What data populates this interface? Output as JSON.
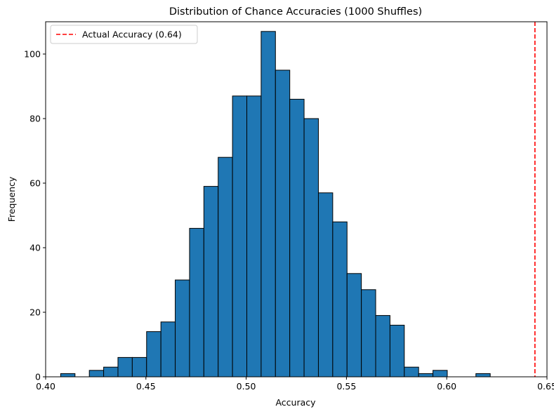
{
  "chart_data": {
    "type": "bar",
    "title": "Distribution of Chance Accuracies (1000 Shuffles)",
    "xlabel": "Accuracy",
    "ylabel": "Frequency",
    "xlim": [
      0.4,
      0.65
    ],
    "ylim": [
      0,
      110
    ],
    "xticks": [
      0.4,
      0.45,
      0.5,
      0.55,
      0.6,
      0.65
    ],
    "xtick_labels": [
      "0.40",
      "0.45",
      "0.50",
      "0.55",
      "0.60",
      "0.65"
    ],
    "yticks": [
      0,
      20,
      40,
      60,
      80,
      100
    ],
    "ytick_labels": [
      "0",
      "20",
      "40",
      "60",
      "80",
      "100"
    ],
    "bins_start": 0.4075,
    "bin_width": 0.00714,
    "counts": [
      1,
      0,
      2,
      3,
      6,
      6,
      14,
      17,
      30,
      46,
      59,
      68,
      87,
      87,
      107,
      95,
      86,
      80,
      57,
      48,
      32,
      27,
      19,
      16,
      3,
      1,
      2,
      0,
      0,
      1
    ],
    "bar_color": "#1f77b4",
    "bar_edge_color": "#000000",
    "reference_line": {
      "value": 0.644,
      "label": "Actual Accuracy (0.64)",
      "color": "#ff0000",
      "style": "dashed"
    },
    "legend_position": "top-left",
    "grid": false
  }
}
